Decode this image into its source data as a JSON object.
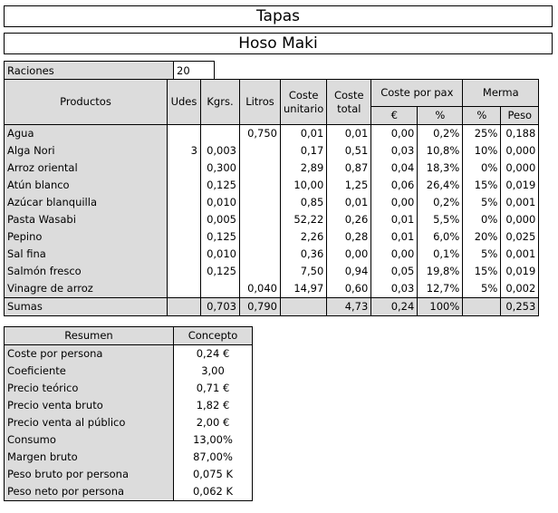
{
  "title": "Tapas",
  "subtitle": "Hoso Maki",
  "raciones": {
    "label": "Raciones",
    "value": "20"
  },
  "headers": {
    "productos": "Productos",
    "udes": "Udes",
    "kgrs": "Kgrs.",
    "litros": "Litros",
    "coste_unitario": "Coste unitario",
    "coste_total": "Coste total",
    "coste_por_pax": "Coste por pax",
    "merma": "Merma",
    "eur": "€",
    "pct": "%",
    "merma_pct": "%",
    "peso": "Peso"
  },
  "rows": [
    [
      "Agua",
      "",
      "",
      "0,750",
      "0,01",
      "0,01",
      "0,00",
      "0,2%",
      "25%",
      "0,188"
    ],
    [
      "Alga Nori",
      "3",
      "0,003",
      "",
      "0,17",
      "0,51",
      "0,03",
      "10,8%",
      "10%",
      "0,000"
    ],
    [
      "Arroz oriental",
      "",
      "0,300",
      "",
      "2,89",
      "0,87",
      "0,04",
      "18,3%",
      "0%",
      "0,000"
    ],
    [
      "Atún blanco",
      "",
      "0,125",
      "",
      "10,00",
      "1,25",
      "0,06",
      "26,4%",
      "15%",
      "0,019"
    ],
    [
      "Azúcar blanquilla",
      "",
      "0,010",
      "",
      "0,85",
      "0,01",
      "0,00",
      "0,2%",
      "5%",
      "0,001"
    ],
    [
      "Pasta Wasabi",
      "",
      "0,005",
      "",
      "52,22",
      "0,26",
      "0,01",
      "5,5%",
      "0%",
      "0,000"
    ],
    [
      "Pepino",
      "",
      "0,125",
      "",
      "2,26",
      "0,28",
      "0,01",
      "6,0%",
      "20%",
      "0,025"
    ],
    [
      "Sal fina",
      "",
      "0,010",
      "",
      "0,36",
      "0,00",
      "0,00",
      "0,1%",
      "5%",
      "0,001"
    ],
    [
      "Salmón fresco",
      "",
      "0,125",
      "",
      "7,50",
      "0,94",
      "0,05",
      "19,8%",
      "15%",
      "0,019"
    ],
    [
      "Vinagre de arroz",
      "",
      "",
      "0,040",
      "14,97",
      "0,60",
      "0,03",
      "12,7%",
      "5%",
      "0,002"
    ]
  ],
  "sumas": [
    "Sumas",
    "",
    "0,703",
    "0,790",
    "",
    "4,73",
    "0,24",
    "100%",
    "",
    "0,253"
  ],
  "resumen": {
    "header_left": "Resumen",
    "header_right": "Concepto",
    "items": [
      [
        "Coste por persona",
        "0,24 €"
      ],
      [
        "Coeficiente",
        "3,00"
      ],
      [
        "Precio teórico",
        "0,71 €"
      ],
      [
        "Precio venta bruto",
        "1,82 €"
      ],
      [
        "Precio venta al público",
        "2,00 €"
      ],
      [
        "Consumo",
        "13,00%"
      ],
      [
        "Margen bruto",
        "87,00%"
      ],
      [
        "Peso bruto por persona",
        "0,075 K"
      ],
      [
        "Peso neto por persona",
        "0,062 K"
      ]
    ]
  }
}
